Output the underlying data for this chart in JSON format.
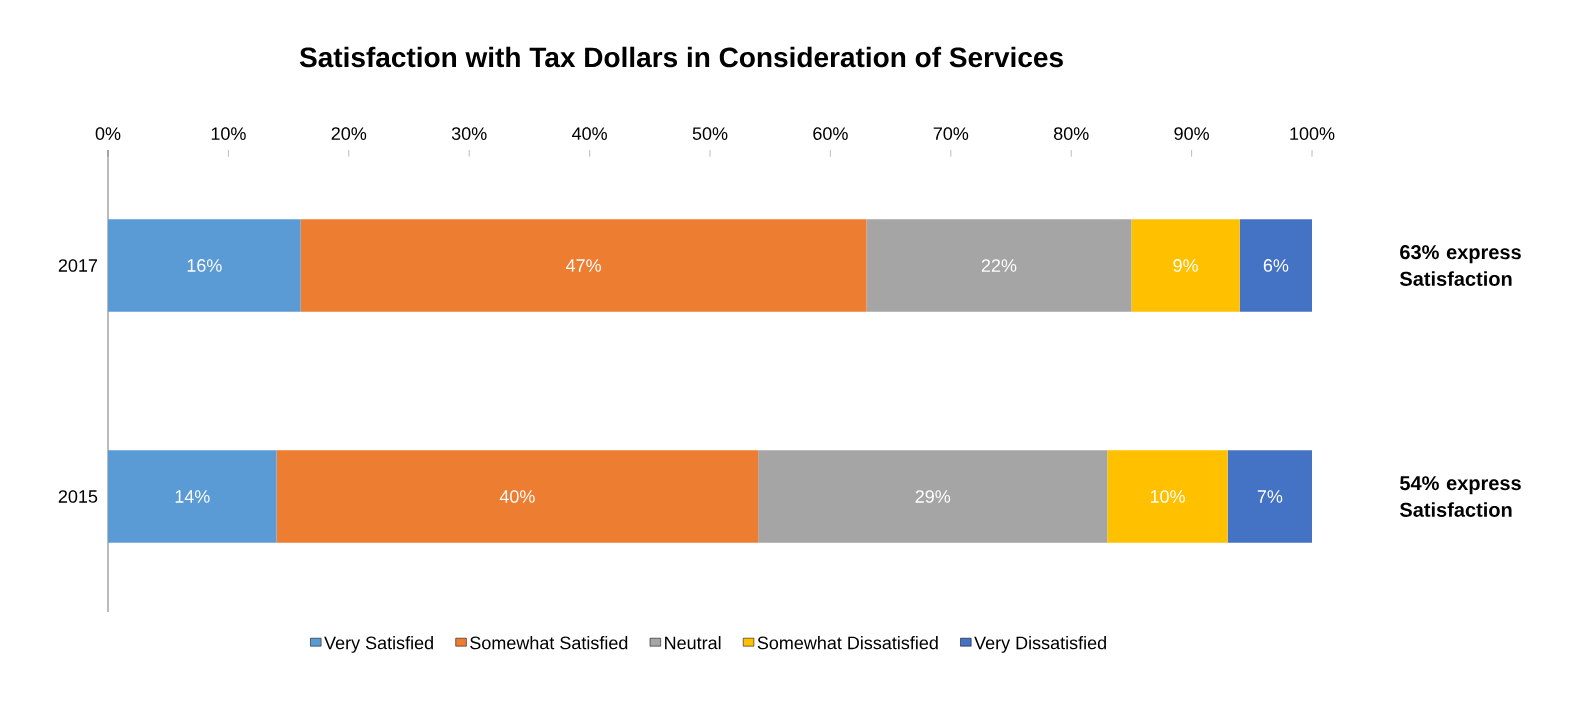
{
  "chart_data": {
    "type": "bar",
    "orientation": "horizontal",
    "stacked": true,
    "title": "Satisfaction with Tax Dollars in Consideration of Services",
    "categories": [
      "2017",
      "2015"
    ],
    "series": [
      {
        "name": "Very Satisfied",
        "color": "#5b9bd5",
        "values": [
          16,
          14
        ],
        "value_labels": [
          "16%",
          "14%"
        ]
      },
      {
        "name": "Somewhat Satisfied",
        "color": "#ed7d31",
        "values": [
          47,
          40
        ],
        "value_labels": [
          "47%",
          "40%"
        ]
      },
      {
        "name": "Neutral",
        "color": "#a5a5a5",
        "values": [
          22,
          29
        ],
        "value_labels": [
          "22%",
          "29%"
        ]
      },
      {
        "name": "Somewhat Dissatisfied",
        "color": "#ffc000",
        "values": [
          9,
          10
        ],
        "value_labels": [
          "9%",
          "10%"
        ]
      },
      {
        "name": "Very Dissatisfied",
        "color": "#4472c4",
        "values": [
          6,
          7
        ],
        "value_labels": [
          "6%",
          "7%"
        ]
      }
    ],
    "xlim": [
      0,
      100
    ],
    "xticks": [
      {
        "value": 0,
        "label": "0%"
      },
      {
        "value": 10,
        "label": "10%"
      },
      {
        "value": 20,
        "label": "20%"
      },
      {
        "value": 30,
        "label": "30%"
      },
      {
        "value": 40,
        "label": "40%"
      },
      {
        "value": 50,
        "label": "50%"
      },
      {
        "value": 60,
        "label": "60%"
      },
      {
        "value": 70,
        "label": "70%"
      },
      {
        "value": 80,
        "label": "80%"
      },
      {
        "value": 90,
        "label": "90%"
      },
      {
        "value": 100,
        "label": "100%"
      }
    ],
    "legend": "bottom",
    "annotations": [
      "63% express Satisfaction",
      "54% express Satisfaction"
    ]
  }
}
